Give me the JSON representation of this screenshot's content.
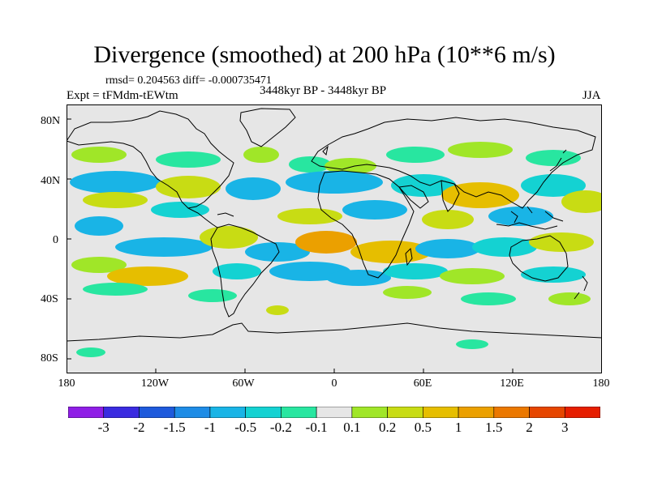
{
  "title": "Divergence (smoothed) at 200 hPa (10**6 m/s)",
  "stats": "rmsd= 0.204563 diff= -0.000735471",
  "experiment": "Expt = tFMdm-tEWtm",
  "period": "3448kyr BP - 3448kyr BP",
  "season": "JJA",
  "y_ticks": [
    "80N",
    "40N",
    "0",
    "40S",
    "80S"
  ],
  "x_ticks": [
    "180",
    "120W",
    "60W",
    "0",
    "60E",
    "120E",
    "180"
  ],
  "colorbar": {
    "labels": [
      "-3",
      "-2",
      "-1.5",
      "-1",
      "-0.5",
      "-0.2",
      "-0.1",
      "0.1",
      "0.2",
      "0.5",
      "1",
      "1.5",
      "2",
      "3"
    ],
    "colors": [
      "#8f1ee6",
      "#3a2be0",
      "#1e5adc",
      "#1e8ce6",
      "#19b4e6",
      "#14d2d2",
      "#28e6a0",
      "#e6e6e6",
      "#a0e628",
      "#c8dc14",
      "#e6be00",
      "#eba000",
      "#eb7800",
      "#e64600",
      "#e61e00"
    ]
  },
  "colors": {
    "neutral": "#e6e6e6",
    "neg_small": "#28e6a0",
    "neg_mid": "#14d2d2",
    "neg_large": "#19b4e6",
    "pos_small": "#a0e628",
    "pos_mid": "#c8dc14",
    "pos_large": "#e6be00",
    "pos_xlarge": "#eba000",
    "coast": "#000000"
  }
}
